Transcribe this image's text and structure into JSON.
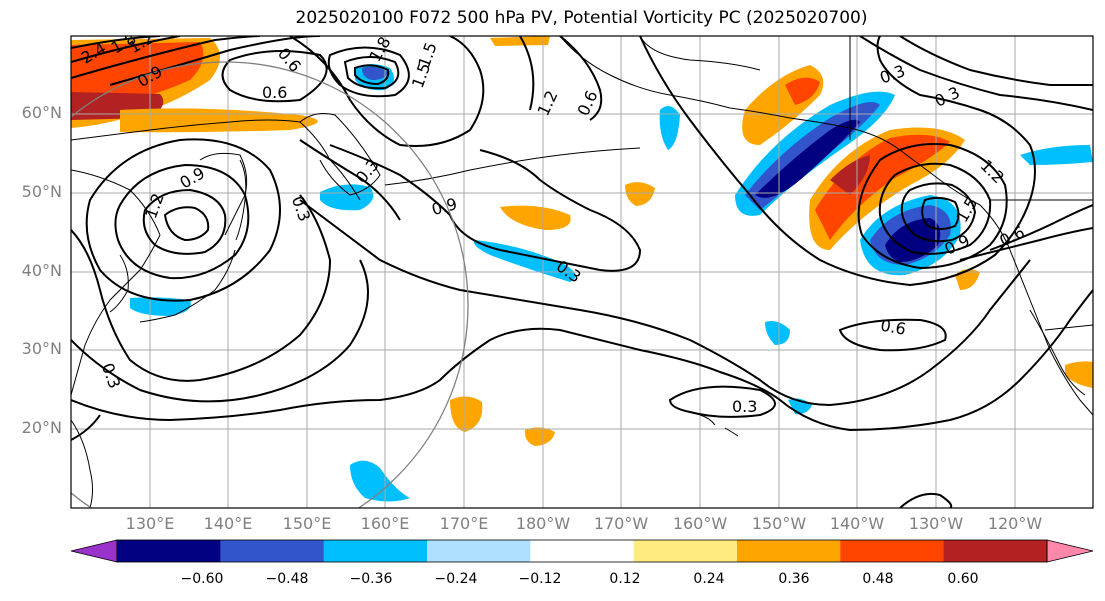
{
  "title": "2025020100 F072 500 hPa PV, Potential Vorticity PC (2025020700)",
  "lat_labels": [
    "60°N",
    "50°N",
    "40°N",
    "30°N",
    "20°N"
  ],
  "lon_labels": [
    "130°E",
    "140°E",
    "150°E",
    "160°E",
    "170°E",
    "180°W",
    "170°W",
    "160°W",
    "150°W",
    "140°W",
    "130°W",
    "120°W"
  ],
  "colorbar": {
    "ticks": [
      "−0.60",
      "−0.48",
      "−0.36",
      "−0.24",
      "−0.12",
      "0.12",
      "0.24",
      "0.36",
      "0.48",
      "0.60"
    ],
    "colors": [
      "#9933cc",
      "#000080",
      "#3355cc",
      "#00bfff",
      "#b0e0ff",
      "#ffffff",
      "#ffeb80",
      "#ffa500",
      "#ff4500",
      "#b22222",
      "#ff88aa"
    ]
  },
  "contour_labels": [
    "0.6",
    "0.3",
    "0.9",
    "1.2",
    "1.5",
    "1.8",
    "2.4",
    "0.9",
    "0.3",
    "0.6",
    "0.3",
    "0.3",
    "0.9",
    "0.6",
    "1.2",
    "0.6",
    "1.2",
    "0.3",
    "0.6",
    "0.3",
    "0.9",
    "0.3",
    "1.5",
    "1.8",
    "1.5",
    "1.2"
  ]
}
